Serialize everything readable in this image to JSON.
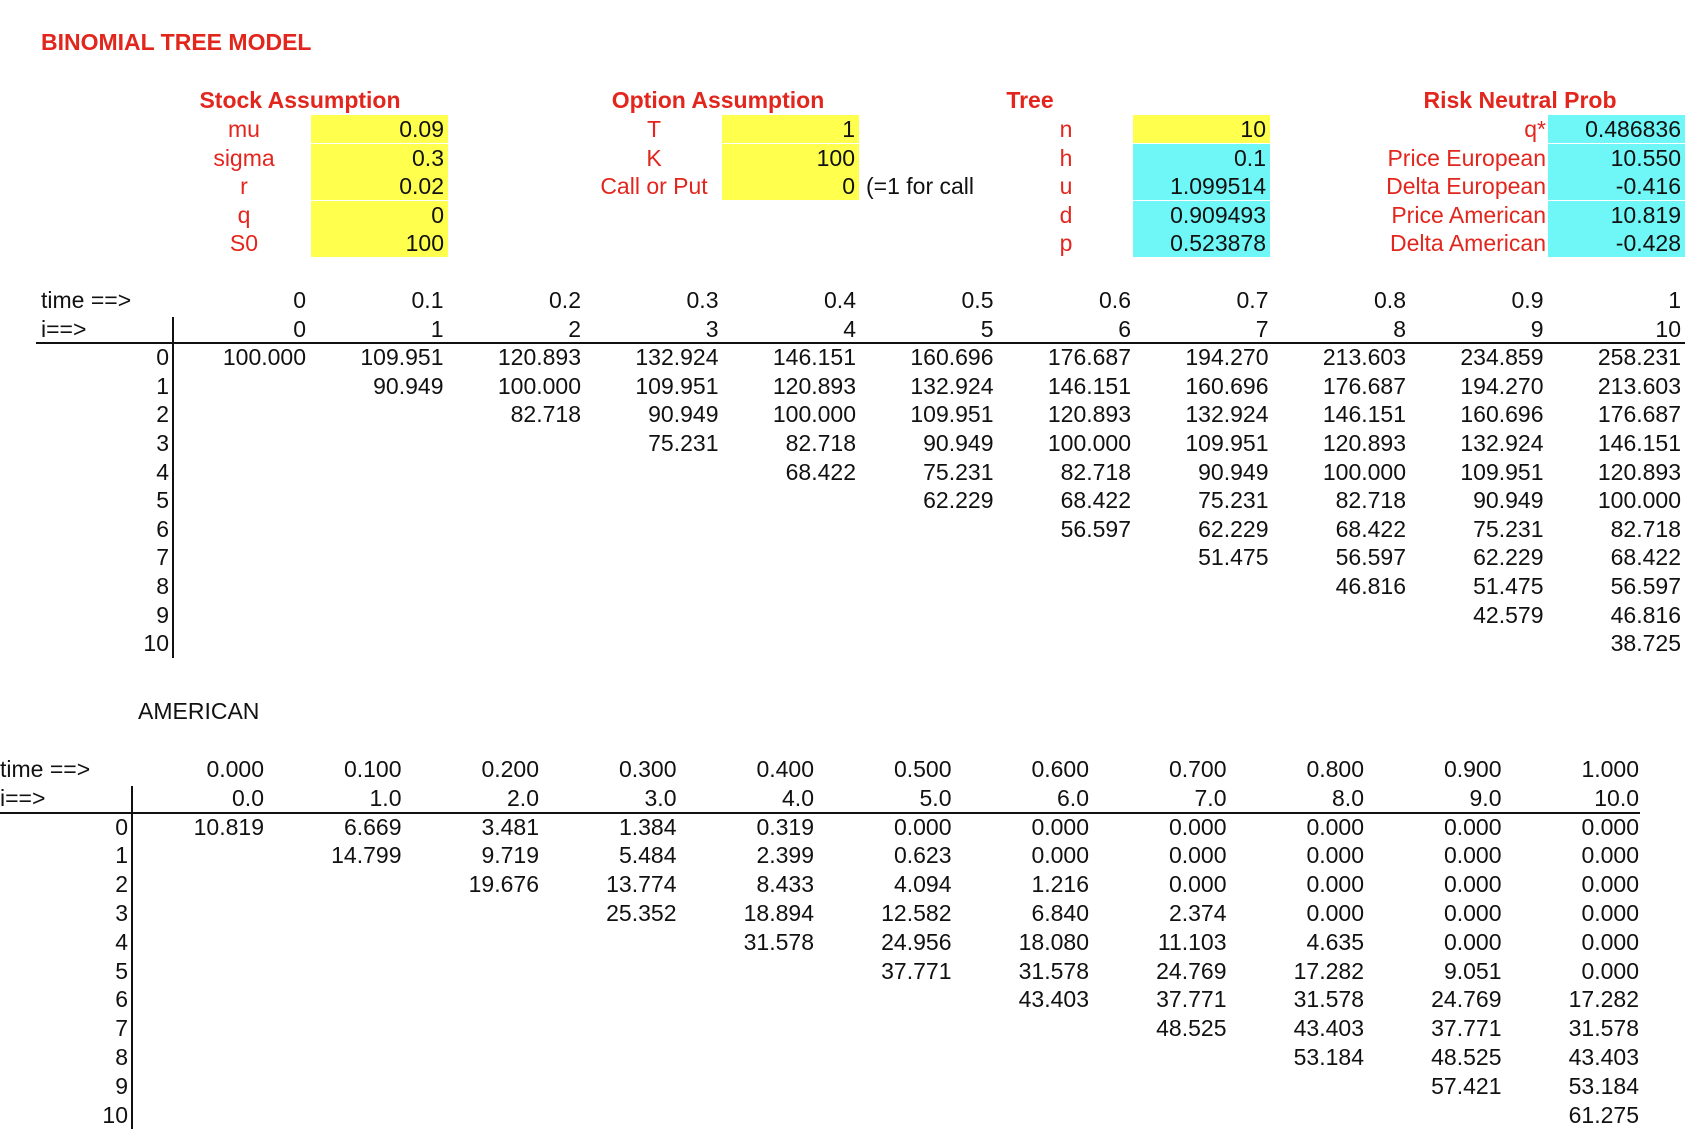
{
  "title": "BINOMIAL TREE MODEL",
  "stock": {
    "header": "Stock Assumption",
    "rows": [
      {
        "label": "mu",
        "value": "0.09"
      },
      {
        "label": "sigma",
        "value": "0.3"
      },
      {
        "label": "r",
        "value": "0.02"
      },
      {
        "label": "q",
        "value": "0"
      },
      {
        "label": "S0",
        "value": "100"
      }
    ]
  },
  "option": {
    "header": "Option Assumption",
    "rows": [
      {
        "label": "T",
        "value": "1"
      },
      {
        "label": "K",
        "value": "100"
      },
      {
        "label": "Call or Put",
        "value": "0"
      }
    ],
    "note": "(=1 for call"
  },
  "tree": {
    "header": "Tree",
    "rows": [
      {
        "label": "n",
        "value": "10"
      },
      {
        "label": "h",
        "value": "0.1"
      },
      {
        "label": "u",
        "value": "1.099514"
      },
      {
        "label": "d",
        "value": "0.909493"
      },
      {
        "label": "p",
        "value": "0.523878"
      }
    ]
  },
  "risk": {
    "header": "Risk Neutral Prob",
    "rows": [
      {
        "label": "q*",
        "value": "0.486836"
      },
      {
        "label": "Price European",
        "value": "10.550"
      },
      {
        "label": "Delta European",
        "value": "-0.416"
      },
      {
        "label": "Price American",
        "value": "10.819"
      },
      {
        "label": "Delta American",
        "value": "-0.428"
      }
    ]
  },
  "colors": {
    "red": "#e2261d",
    "yellow": "#ffff4d",
    "cyan": "#6ff7f7"
  },
  "stock_tree": {
    "time_label": "time ==>",
    "i_label": "i==>",
    "times": [
      "0",
      "0.1",
      "0.2",
      "0.3",
      "0.4",
      "0.5",
      "0.6",
      "0.7",
      "0.8",
      "0.9",
      "1"
    ],
    "steps": [
      "0",
      "1",
      "2",
      "3",
      "4",
      "5",
      "6",
      "7",
      "8",
      "9",
      "10"
    ],
    "row_labels": [
      "0",
      "1",
      "2",
      "3",
      "4",
      "5",
      "6",
      "7",
      "8",
      "9",
      "10"
    ],
    "rows": [
      [
        "100.000",
        "109.951",
        "120.893",
        "132.924",
        "146.151",
        "160.696",
        "176.687",
        "194.270",
        "213.603",
        "234.859",
        "258.231"
      ],
      [
        "",
        "90.949",
        "100.000",
        "109.951",
        "120.893",
        "132.924",
        "146.151",
        "160.696",
        "176.687",
        "194.270",
        "213.603"
      ],
      [
        "",
        "",
        "82.718",
        "90.949",
        "100.000",
        "109.951",
        "120.893",
        "132.924",
        "146.151",
        "160.696",
        "176.687"
      ],
      [
        "",
        "",
        "",
        "75.231",
        "82.718",
        "90.949",
        "100.000",
        "109.951",
        "120.893",
        "132.924",
        "146.151"
      ],
      [
        "",
        "",
        "",
        "",
        "68.422",
        "75.231",
        "82.718",
        "90.949",
        "100.000",
        "109.951",
        "120.893"
      ],
      [
        "",
        "",
        "",
        "",
        "",
        "62.229",
        "68.422",
        "75.231",
        "82.718",
        "90.949",
        "100.000"
      ],
      [
        "",
        "",
        "",
        "",
        "",
        "",
        "56.597",
        "62.229",
        "68.422",
        "75.231",
        "82.718"
      ],
      [
        "",
        "",
        "",
        "",
        "",
        "",
        "",
        "51.475",
        "56.597",
        "62.229",
        "68.422"
      ],
      [
        "",
        "",
        "",
        "",
        "",
        "",
        "",
        "",
        "46.816",
        "51.475",
        "56.597"
      ],
      [
        "",
        "",
        "",
        "",
        "",
        "",
        "",
        "",
        "",
        "42.579",
        "46.816"
      ],
      [
        "",
        "",
        "",
        "",
        "",
        "",
        "",
        "",
        "",
        "",
        "38.725"
      ]
    ]
  },
  "american": {
    "label": "AMERICAN",
    "time_label": "time ==>",
    "i_label": "i==>",
    "times": [
      "0.000",
      "0.100",
      "0.200",
      "0.300",
      "0.400",
      "0.500",
      "0.600",
      "0.700",
      "0.800",
      "0.900",
      "1.000"
    ],
    "steps": [
      "0.0",
      "1.0",
      "2.0",
      "3.0",
      "4.0",
      "5.0",
      "6.0",
      "7.0",
      "8.0",
      "9.0",
      "10.0"
    ],
    "row_labels": [
      "0",
      "1",
      "2",
      "3",
      "4",
      "5",
      "6",
      "7",
      "8",
      "9",
      "10"
    ],
    "rows": [
      [
        "10.819",
        "6.669",
        "3.481",
        "1.384",
        "0.319",
        "0.000",
        "0.000",
        "0.000",
        "0.000",
        "0.000",
        "0.000"
      ],
      [
        "",
        "14.799",
        "9.719",
        "5.484",
        "2.399",
        "0.623",
        "0.000",
        "0.000",
        "0.000",
        "0.000",
        "0.000"
      ],
      [
        "",
        "",
        "19.676",
        "13.774",
        "8.433",
        "4.094",
        "1.216",
        "0.000",
        "0.000",
        "0.000",
        "0.000"
      ],
      [
        "",
        "",
        "",
        "25.352",
        "18.894",
        "12.582",
        "6.840",
        "2.374",
        "0.000",
        "0.000",
        "0.000"
      ],
      [
        "",
        "",
        "",
        "",
        "31.578",
        "24.956",
        "18.080",
        "11.103",
        "4.635",
        "0.000",
        "0.000"
      ],
      [
        "",
        "",
        "",
        "",
        "",
        "37.771",
        "31.578",
        "24.769",
        "17.282",
        "9.051",
        "0.000"
      ],
      [
        "",
        "",
        "",
        "",
        "",
        "",
        "43.403",
        "37.771",
        "31.578",
        "24.769",
        "17.282"
      ],
      [
        "",
        "",
        "",
        "",
        "",
        "",
        "",
        "48.525",
        "43.403",
        "37.771",
        "31.578"
      ],
      [
        "",
        "",
        "",
        "",
        "",
        "",
        "",
        "",
        "53.184",
        "48.525",
        "43.403"
      ],
      [
        "",
        "",
        "",
        "",
        "",
        "",
        "",
        "",
        "",
        "57.421",
        "53.184"
      ],
      [
        "",
        "",
        "",
        "",
        "",
        "",
        "",
        "",
        "",
        "",
        "61.275"
      ]
    ]
  }
}
